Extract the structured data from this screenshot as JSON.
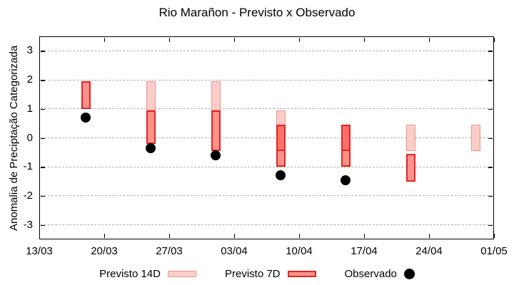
{
  "chart_data": {
    "type": "bar",
    "title": "Rio Marañon - Previsto x Observado",
    "ylabel": "Anomalia de Preciptação Categorizada",
    "xlabel": "",
    "ylim": [
      -3.5,
      3.5
    ],
    "yticks": [
      3,
      2,
      1,
      0,
      -1,
      -2,
      -3
    ],
    "x_tick_labels": [
      "13/03",
      "20/03",
      "27/03",
      "03/04",
      "10/04",
      "17/04",
      "24/04",
      "01/05"
    ],
    "x_tick_days": [
      0,
      7,
      14,
      21,
      28,
      35,
      42,
      49
    ],
    "grid": "horizontal-dashed",
    "series_names": [
      "Previsto 14D",
      "Previsto 7D",
      "Observado"
    ],
    "points": [
      {
        "date": "18/03",
        "day": 5,
        "previsto_14d": null,
        "previsto_7d": [
          1.0,
          1.95
        ],
        "observado": 0.7
      },
      {
        "date": "25/03",
        "day": 12,
        "previsto_14d": [
          0.95,
          1.95
        ],
        "previsto_7d": [
          -0.2,
          0.95
        ],
        "observado": -0.35
      },
      {
        "date": "01/04",
        "day": 19,
        "previsto_14d": [
          0.95,
          1.95
        ],
        "previsto_7d": [
          -0.45,
          0.95
        ],
        "observado": -0.6
      },
      {
        "date": "08/04",
        "day": 26,
        "previsto_14d": [
          -0.45,
          0.95
        ],
        "previsto_7d": [
          -1.0,
          0.45
        ],
        "observado": -1.3
      },
      {
        "date": "15/04",
        "day": 33,
        "previsto_14d": [
          -0.45,
          0.45
        ],
        "previsto_7d": [
          -1.0,
          0.45
        ],
        "observado": -1.45
      },
      {
        "date": "22/04",
        "day": 40,
        "previsto_14d": [
          -0.45,
          0.45
        ],
        "previsto_7d": [
          -1.5,
          -0.55
        ],
        "observado": null
      },
      {
        "date": "29/04",
        "day": 47,
        "previsto_14d": [
          -0.45,
          0.45
        ],
        "previsto_7d": null,
        "observado": null
      }
    ],
    "legend": {
      "position": "bottom",
      "items": [
        {
          "label": "Previsto 14D",
          "marker": "box-14d"
        },
        {
          "label": "Previsto 7D",
          "marker": "box-7d"
        },
        {
          "label": "Observado",
          "marker": "dot"
        }
      ]
    },
    "colors": {
      "previsto_14d_fill": "#fbcdc8",
      "previsto_14d_border": "#f0938b",
      "previsto_7d_fill": "#fb938b",
      "previsto_7d_border": "#e62420",
      "overlap_fill": "#f7726a",
      "observado": "#000000",
      "grid": "#b0b0b0",
      "axis": "#000000",
      "background": "#ffffff"
    }
  }
}
